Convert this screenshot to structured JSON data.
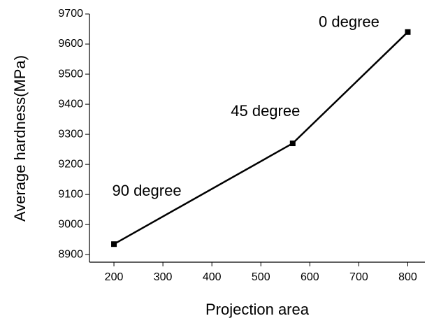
{
  "chart_data": {
    "type": "line",
    "x_label": "Projection area",
    "y_label": "Average hardness(MPa)",
    "x": [
      200,
      565,
      800
    ],
    "series": [
      {
        "color": "#000000",
        "values": [
          8935,
          9270,
          9640
        ]
      }
    ],
    "annotations": [
      "90 degree",
      "45 degree",
      "0 degree"
    ],
    "xlim": [
      150,
      835
    ],
    "ylim": [
      8875,
      9700
    ],
    "xticks": [
      200,
      300,
      400,
      500,
      600,
      700,
      800
    ],
    "yticks": [
      8900,
      9000,
      9100,
      9200,
      9300,
      9400,
      9500,
      9600,
      9700
    ]
  }
}
